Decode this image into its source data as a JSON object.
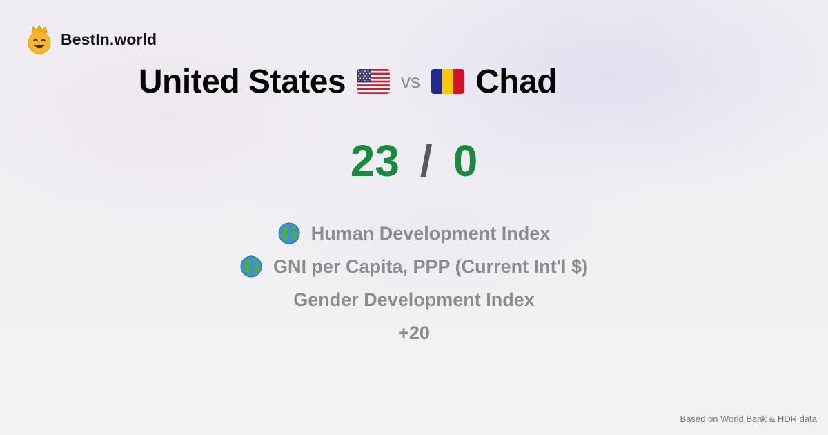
{
  "brand": {
    "name": "BestIn.world",
    "icon": "crowned-smiley-icon"
  },
  "comparison": {
    "country_a": {
      "name": "United States",
      "flag": "us-flag-icon"
    },
    "vs_label": "vs",
    "country_b": {
      "name": "Chad",
      "flag": "chad-flag-icon"
    }
  },
  "score": {
    "a": "23",
    "separator": "/",
    "b": "0",
    "color": "#1a8a3c"
  },
  "metrics": [
    {
      "label": "Human Development Index",
      "icon": "globe-icon"
    },
    {
      "label": "GNI per Capita, PPP (Current Int'l $)",
      "icon": "globe-icon"
    },
    {
      "label": "Gender Development Index",
      "icon": ""
    },
    {
      "label": "+20",
      "icon": ""
    }
  ],
  "footer": {
    "source": "Based on World Bank & HDR data"
  }
}
